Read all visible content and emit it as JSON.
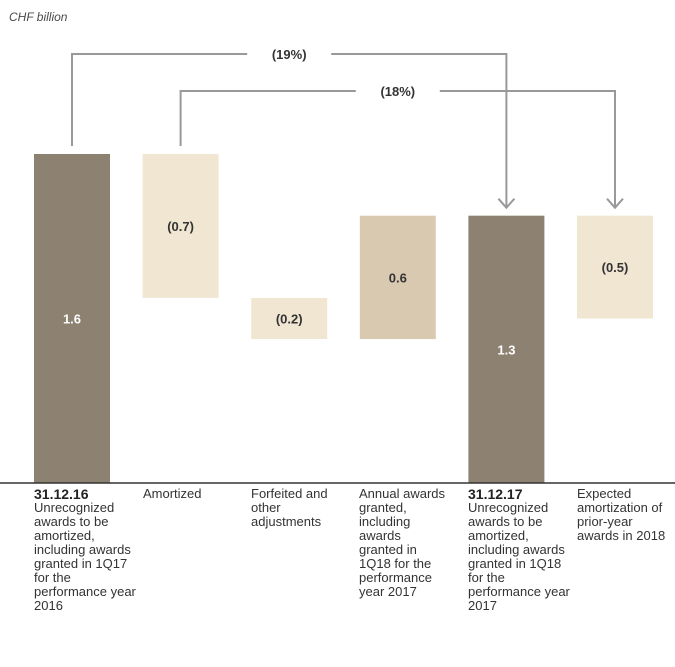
{
  "unit_label": "CHF billion",
  "colors": {
    "balance": "#8d8171",
    "reduction": "#f0e6d2",
    "addition": "#dac9b1",
    "value_on_dark": "#ffffff",
    "value_on_light": "#333333",
    "connector": "#999999",
    "axis": "#333333"
  },
  "chart_data": {
    "type": "bar",
    "subtype": "waterfall",
    "unit": "CHF billion",
    "ylim": [
      0,
      1.6
    ],
    "bars": [
      {
        "label": "1.6",
        "kind": "balance",
        "start": 0,
        "end": 1.6
      },
      {
        "label": "(0.7)",
        "kind": "reduction",
        "start": 1.6,
        "end": 0.9
      },
      {
        "label": "(0.2)",
        "kind": "reduction",
        "start": 0.9,
        "end": 0.7
      },
      {
        "label": "0.6",
        "kind": "addition",
        "start": 0.7,
        "end": 1.3
      },
      {
        "label": "1.3",
        "kind": "balance",
        "start": 0,
        "end": 1.3
      },
      {
        "label": "(0.5)",
        "kind": "reduction",
        "start": 1.3,
        "end": 0.8
      }
    ],
    "categories": [
      {
        "head": "31.12.16",
        "text": "Unrecognized awards to be amortized, including awards granted in 1Q17 for the performance year 2016"
      },
      {
        "head": "",
        "text": "Amortized"
      },
      {
        "head": "",
        "text": "Forfeited and other adjustments"
      },
      {
        "head": "",
        "text": "Annual awards granted, including awards granted in 1Q18 for the performance year 2017"
      },
      {
        "head": "31.12.17",
        "text": "Unrecognized awards to be amortized, including awards granted in 1Q18 for the performance year 2017"
      },
      {
        "head": "",
        "text": "Expected amortization of prior-year awards in 2018"
      }
    ],
    "annotations": [
      {
        "label": "(19%)",
        "from_bar": 0,
        "to_bar": 4
      },
      {
        "label": "(18%)",
        "from_bar": 1,
        "to_bar": 5
      }
    ]
  }
}
